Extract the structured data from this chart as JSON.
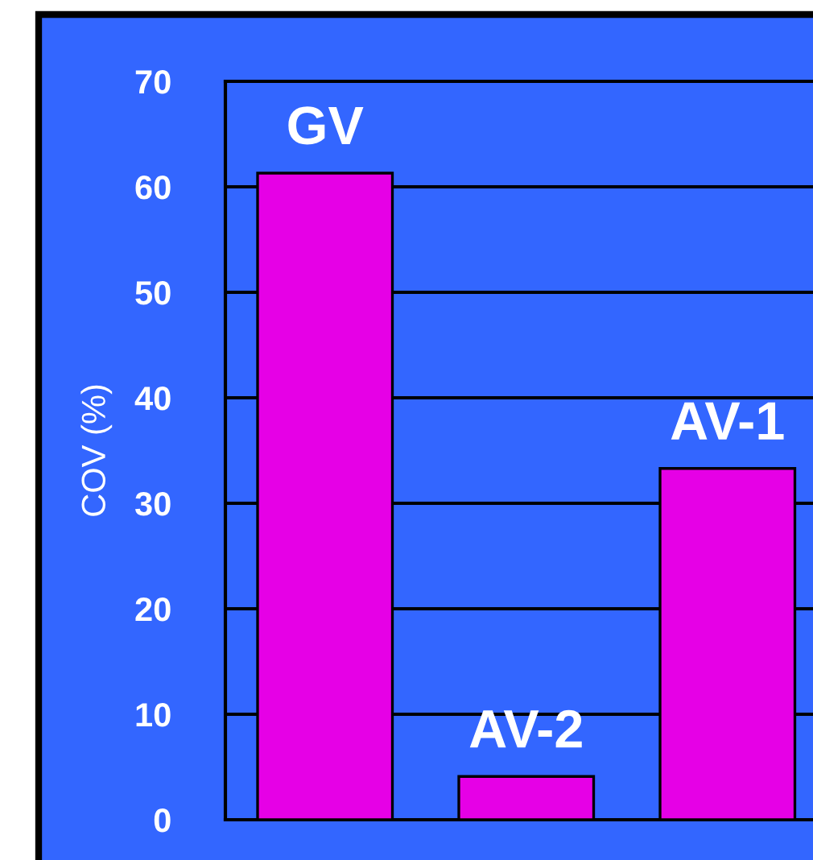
{
  "chart_data": {
    "type": "bar",
    "ylabel": "COV (%)",
    "categories": [
      "GV",
      "AV-2",
      "AV-1"
    ],
    "values": [
      61.3,
      4.1,
      33.3
    ],
    "color": "#e600e6",
    "ylim": [
      0,
      70
    ],
    "yticks": [
      0,
      10,
      20,
      30,
      40,
      50,
      60,
      70
    ],
    "grid": "y"
  }
}
